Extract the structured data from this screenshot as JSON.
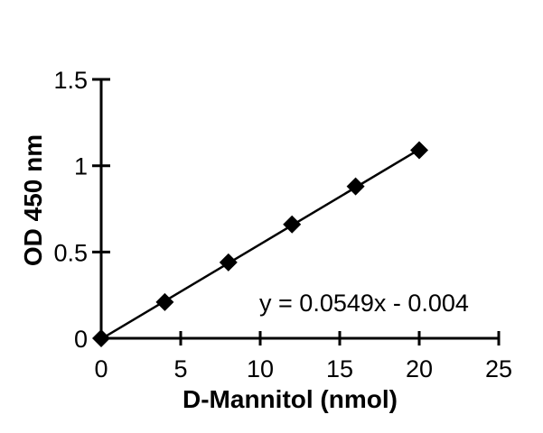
{
  "figure": {
    "background": "#ffffff"
  },
  "chart_data": {
    "type": "scatter",
    "title": "",
    "xlabel": "D-Mannitol (nmol)",
    "ylabel": "OD 450 nm",
    "x": [
      0,
      4,
      8,
      12,
      16,
      20
    ],
    "y": [
      0,
      0.21,
      0.44,
      0.66,
      0.88,
      1.09
    ],
    "xlim": [
      0,
      25
    ],
    "ylim": [
      0,
      1.5
    ],
    "x_ticks": [
      "0",
      "5",
      "10",
      "15",
      "20",
      "25"
    ],
    "y_ticks": [
      "0",
      "0.5",
      "1",
      "1.5"
    ],
    "grid": false,
    "legend": false,
    "marker": "diamond",
    "colors": {
      "series": "#000000",
      "axis": "#000000",
      "text": "#000000",
      "background": "#ffffff"
    },
    "trendline": {
      "slope": 0.0549,
      "intercept": -0.004,
      "x_start": 0,
      "x_end": 20,
      "equation_text": "y = 0.0549x - 0.004"
    }
  }
}
